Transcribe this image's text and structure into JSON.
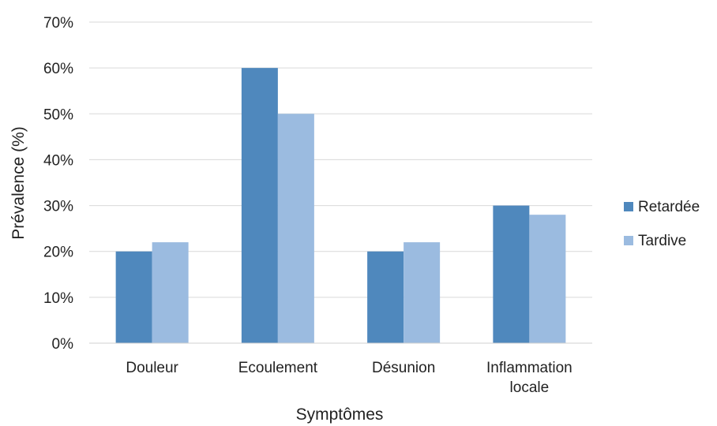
{
  "chart_data": {
    "type": "bar",
    "title": "",
    "xlabel": "Symptômes",
    "ylabel": "Prévalence (%)",
    "categories": [
      [
        "Douleur"
      ],
      [
        "Ecoulement"
      ],
      [
        "Désunion"
      ],
      [
        "Inflammation",
        "locale"
      ]
    ],
    "series": [
      {
        "name": "Retardée",
        "color": "#4f88bd",
        "values": [
          20,
          60,
          20,
          30
        ]
      },
      {
        "name": "Tardive",
        "color": "#9bbbe0",
        "values": [
          22,
          50,
          22,
          28
        ]
      }
    ],
    "ylim": [
      0,
      70
    ],
    "yticks": [
      "0%",
      "10%",
      "20%",
      "30%",
      "40%",
      "50%",
      "60%",
      "70%"
    ],
    "grid": true,
    "legend_position": "right"
  }
}
